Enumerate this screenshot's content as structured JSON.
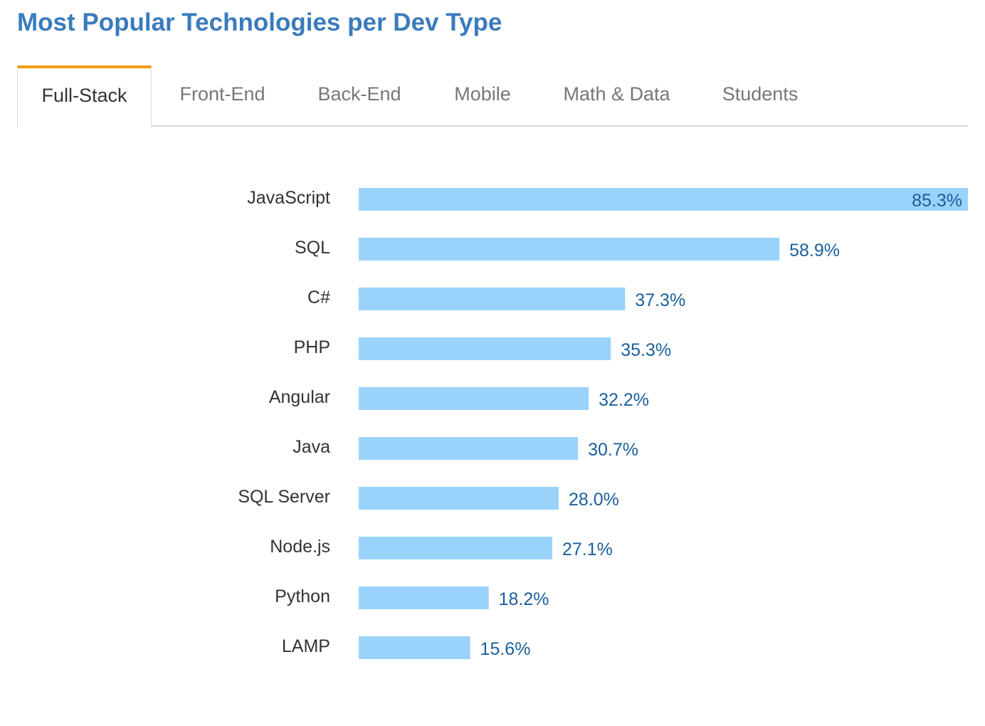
{
  "page": {
    "title": "Most Popular Technologies per Dev Type"
  },
  "tabs": [
    {
      "label": "Full-Stack",
      "active": true
    },
    {
      "label": "Front-End",
      "active": false
    },
    {
      "label": "Back-End",
      "active": false
    },
    {
      "label": "Mobile",
      "active": false
    },
    {
      "label": "Math & Data",
      "active": false
    },
    {
      "label": "Students",
      "active": false
    }
  ],
  "colors": {
    "title": "#3a7bbd",
    "active_tab_accent": "#f39c12",
    "bar": "#99d3fc",
    "value_label": "#1a5f9c",
    "category_label": "#333333"
  },
  "chart_data": {
    "type": "bar",
    "orientation": "horizontal",
    "categories": [
      "JavaScript",
      "SQL",
      "C#",
      "PHP",
      "Angular",
      "Java",
      "SQL Server",
      "Node.js",
      "Python",
      "LAMP"
    ],
    "values": [
      85.3,
      58.9,
      37.3,
      35.3,
      32.2,
      30.7,
      28.0,
      27.1,
      18.2,
      15.6
    ],
    "value_labels": [
      "85.3%",
      "58.9%",
      "37.3%",
      "35.3%",
      "32.2%",
      "30.7%",
      "28.0%",
      "27.1%",
      "18.2%",
      "15.6%"
    ],
    "unit": "%",
    "xlim": [
      0,
      85.3
    ],
    "grid": false,
    "legend": "none"
  }
}
